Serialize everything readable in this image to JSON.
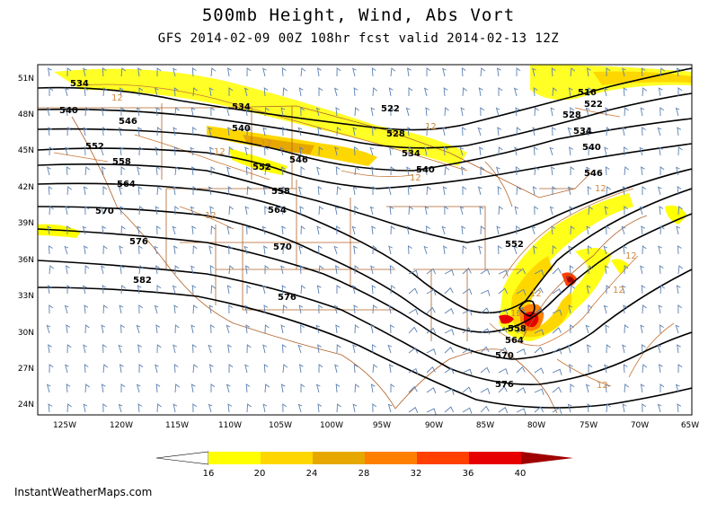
{
  "title": "500mb Height, Wind, Abs Vort",
  "subtitle": "GFS 2014-02-09 00Z 108hr fcst valid 2014-02-13 12Z",
  "credit": "InstantWeatherMaps.com",
  "lat_labels": [
    "51N",
    "48N",
    "45N",
    "42N",
    "39N",
    "36N",
    "33N",
    "30N",
    "27N",
    "24N"
  ],
  "lon_labels": [
    "125W",
    "120W",
    "115W",
    "110W",
    "105W",
    "100W",
    "95W",
    "90W",
    "85W",
    "80W",
    "75W",
    "70W",
    "65W"
  ],
  "colorbar": {
    "ticks": [
      "16",
      "20",
      "24",
      "28",
      "32",
      "36",
      "40"
    ],
    "colors": [
      "#ffffff",
      "#ffff00",
      "#ffd700",
      "#e6a800",
      "#ff8000",
      "#ff4000",
      "#e60000",
      "#a00000"
    ]
  },
  "height_labels": [
    {
      "text": "534"
    },
    {
      "text": "540"
    },
    {
      "text": "546"
    },
    {
      "text": "552"
    },
    {
      "text": "558"
    },
    {
      "text": "564"
    },
    {
      "text": "570"
    },
    {
      "text": "576"
    },
    {
      "text": "582"
    },
    {
      "text": "534"
    },
    {
      "text": "540"
    },
    {
      "text": "552"
    },
    {
      "text": "546"
    },
    {
      "text": "558"
    },
    {
      "text": "564"
    },
    {
      "text": "570"
    },
    {
      "text": "576"
    },
    {
      "text": "522"
    },
    {
      "text": "528"
    },
    {
      "text": "534"
    },
    {
      "text": "540"
    },
    {
      "text": "516"
    },
    {
      "text": "522"
    },
    {
      "text": "528"
    },
    {
      "text": "534"
    },
    {
      "text": "540"
    },
    {
      "text": "546"
    },
    {
      "text": "552"
    },
    {
      "text": "558"
    },
    {
      "text": "564"
    },
    {
      "text": "570"
    },
    {
      "text": "576"
    }
  ],
  "vort_labels": [
    {
      "text": "12"
    },
    {
      "text": "12"
    },
    {
      "text": "12"
    },
    {
      "text": "12"
    },
    {
      "text": "12"
    },
    {
      "text": "12"
    },
    {
      "text": "12"
    },
    {
      "text": "12"
    },
    {
      "text": "12"
    },
    {
      "text": "12"
    },
    {
      "text": "12"
    },
    {
      "text": "12"
    }
  ]
}
